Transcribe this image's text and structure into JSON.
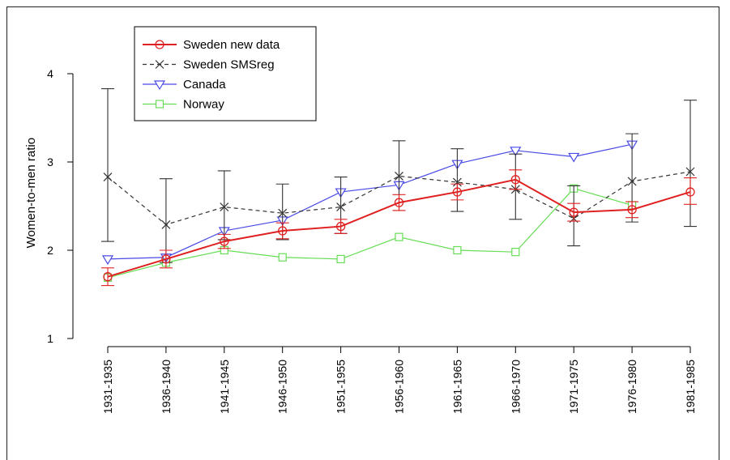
{
  "chart_data": {
    "type": "line",
    "title": "",
    "xlabel": "",
    "ylabel": "Women-to-men ratio",
    "ylim": [
      1,
      4
    ],
    "yticks": [
      "1",
      "2",
      "3",
      "4"
    ],
    "categories": [
      "1931-1935",
      "1936-1940",
      "1941-1945",
      "1946-1950",
      "1951-1955",
      "1956-1960",
      "1961-1965",
      "1966-1970",
      "1971-1975",
      "1976-1980",
      "1981-1985"
    ],
    "legend_position": "top-left",
    "series": [
      {
        "name": "Sweden new data",
        "color": "#e02020",
        "marker": "circle",
        "dash": "solid",
        "values": [
          1.7,
          1.9,
          2.1,
          2.22,
          2.27,
          2.54,
          2.66,
          2.8,
          2.43,
          2.46,
          2.66
        ],
        "error_low": [
          1.6,
          1.8,
          2.02,
          2.13,
          2.19,
          2.45,
          2.57,
          2.69,
          2.33,
          2.37,
          2.52
        ],
        "error_high": [
          1.8,
          2.0,
          2.18,
          2.31,
          2.35,
          2.63,
          2.75,
          2.91,
          2.53,
          2.55,
          2.82
        ]
      },
      {
        "name": "Sweden SMSreg",
        "color": "#333333",
        "marker": "x",
        "dash": "dashed",
        "values": [
          2.83,
          2.29,
          2.49,
          2.42,
          2.49,
          2.84,
          2.77,
          2.69,
          2.36,
          2.78,
          2.89
        ],
        "error_low": [
          2.1,
          1.86,
          2.12,
          2.12,
          2.19,
          2.45,
          2.44,
          2.35,
          2.05,
          2.32,
          2.27
        ],
        "error_high": [
          3.83,
          2.81,
          2.9,
          2.75,
          2.83,
          3.24,
          3.15,
          3.09,
          2.73,
          3.32,
          3.7
        ]
      },
      {
        "name": "Canada",
        "color": "#4a4ae6",
        "marker": "triangle-down",
        "dash": "solid",
        "values": [
          1.9,
          1.92,
          2.22,
          2.34,
          2.66,
          2.74,
          2.98,
          3.13,
          3.06,
          3.2,
          null
        ]
      },
      {
        "name": "Norway",
        "color": "#66dd55",
        "marker": "square",
        "dash": "solid",
        "values": [
          1.69,
          1.86,
          2.0,
          1.92,
          1.9,
          2.15,
          2.0,
          1.98,
          2.7,
          2.51,
          null
        ]
      }
    ]
  }
}
